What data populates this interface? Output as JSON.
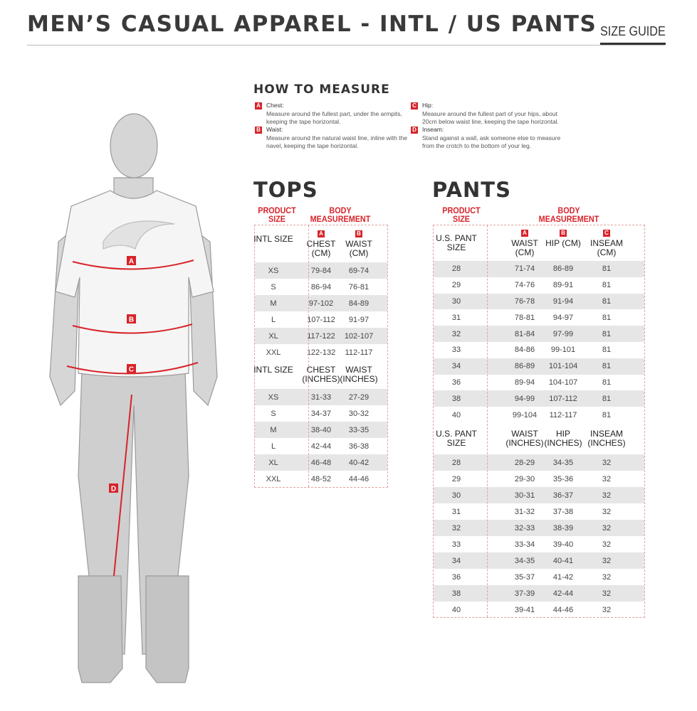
{
  "header": {
    "title": "MEN’S CASUAL APPAREL - INTL / US PANTS",
    "size_guide": "SIZE GUIDE"
  },
  "accent_color": "#d8232a",
  "figure": {
    "markers": [
      "A",
      "B",
      "C",
      "D"
    ]
  },
  "how_to_measure": {
    "title": "HOW TO MEASURE",
    "items": [
      {
        "badge": "A",
        "label": "Chest:",
        "text": "Measure around the fullest part, under the armpits, keeping the tape horizontal."
      },
      {
        "badge": "B",
        "label": "Waist:",
        "text": "Measure around the natural waist line, inline with the navel, keeping the tape horizontal."
      },
      {
        "badge": "C",
        "label": "Hip:",
        "text": "Measure around the fullest part of your hips, about 20cm below waist line, keeping the tape horizontal."
      },
      {
        "badge": "D",
        "label": "Inseam:",
        "text": "Stand against a wall, ask someone else to measure from the crotch to the bottom of your leg."
      }
    ]
  },
  "tops": {
    "title": "TOPS",
    "product_size": "PRODUCT SIZE",
    "body_measurement": "BODY MEASUREMENT",
    "cm": {
      "headers": [
        {
          "badge": "",
          "label": "INTL SIZE"
        },
        {
          "badge": "A",
          "label": "CHEST (CM)"
        },
        {
          "badge": "B",
          "label": "WAIST (CM)"
        }
      ],
      "rows": [
        [
          "XS",
          "79-84",
          "69-74"
        ],
        [
          "S",
          "86-94",
          "76-81"
        ],
        [
          "M",
          "97-102",
          "84-89"
        ],
        [
          "L",
          "107-112",
          "91-97"
        ],
        [
          "XL",
          "117-122",
          "102-107"
        ],
        [
          "XXL",
          "122-132",
          "112-117"
        ]
      ]
    },
    "inches": {
      "headers": [
        {
          "badge": "",
          "label": "INTL SIZE"
        },
        {
          "badge": "",
          "label": "CHEST (INCHES)"
        },
        {
          "badge": "",
          "label": "WAIST (INCHES)"
        }
      ],
      "rows": [
        [
          "XS",
          "31-33",
          "27-29"
        ],
        [
          "S",
          "34-37",
          "30-32"
        ],
        [
          "M",
          "38-40",
          "33-35"
        ],
        [
          "L",
          "42-44",
          "36-38"
        ],
        [
          "XL",
          "46-48",
          "40-42"
        ],
        [
          "XXL",
          "48-52",
          "44-46"
        ]
      ]
    }
  },
  "pants": {
    "title": "PANTS",
    "product_size": "PRODUCT SIZE",
    "body_measurement": "BODY MEASUREMENT",
    "cm": {
      "headers": [
        {
          "badge": "",
          "label": "U.S. PANT SIZE"
        },
        {
          "badge": "A",
          "label": "WAIST (CM)"
        },
        {
          "badge": "B",
          "label": "HIP (CM)"
        },
        {
          "badge": "C",
          "label": "INSEAM (CM)"
        }
      ],
      "rows": [
        [
          "28",
          "71-74",
          "86-89",
          "81"
        ],
        [
          "29",
          "74-76",
          "89-91",
          "81"
        ],
        [
          "30",
          "76-78",
          "91-94",
          "81"
        ],
        [
          "31",
          "78-81",
          "94-97",
          "81"
        ],
        [
          "32",
          "81-84",
          "97-99",
          "81"
        ],
        [
          "33",
          "84-86",
          "99-101",
          "81"
        ],
        [
          "34",
          "86-89",
          "101-104",
          "81"
        ],
        [
          "36",
          "89-94",
          "104-107",
          "81"
        ],
        [
          "38",
          "94-99",
          "107-112",
          "81"
        ],
        [
          "40",
          "99-104",
          "112-117",
          "81"
        ]
      ]
    },
    "inches": {
      "headers": [
        {
          "badge": "",
          "label": "U.S. PANT SIZE"
        },
        {
          "badge": "",
          "label": "WAIST (INCHES)"
        },
        {
          "badge": "",
          "label": "HIP (INCHES)"
        },
        {
          "badge": "",
          "label": "INSEAM (INCHES)"
        }
      ],
      "rows": [
        [
          "28",
          "28-29",
          "34-35",
          "32"
        ],
        [
          "29",
          "29-30",
          "35-36",
          "32"
        ],
        [
          "30",
          "30-31",
          "36-37",
          "32"
        ],
        [
          "31",
          "31-32",
          "37-38",
          "32"
        ],
        [
          "32",
          "32-33",
          "38-39",
          "32"
        ],
        [
          "33",
          "33-34",
          "39-40",
          "32"
        ],
        [
          "34",
          "34-35",
          "40-41",
          "32"
        ],
        [
          "36",
          "35-37",
          "41-42",
          "32"
        ],
        [
          "38",
          "37-39",
          "42-44",
          "32"
        ],
        [
          "40",
          "39-41",
          "44-46",
          "32"
        ]
      ]
    }
  }
}
